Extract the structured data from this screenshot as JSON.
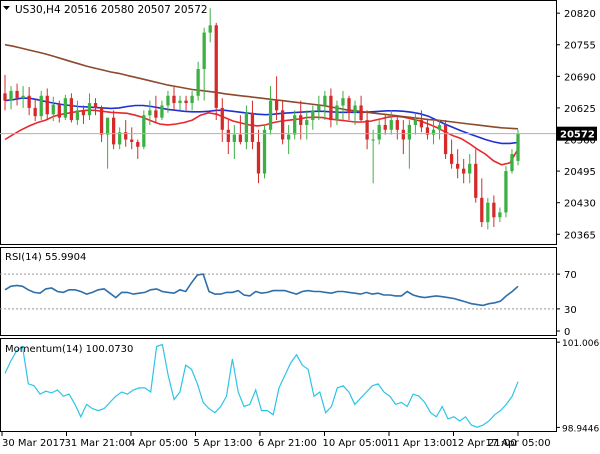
{
  "colors": {
    "bull": "#3cb043",
    "bear": "#d42a2a",
    "ma_red": "#e8282d",
    "ma_blue": "#1f2fd6",
    "ma_brown": "#8b4a2b",
    "rsi_line": "#2e6fa8",
    "momentum_line": "#2ec4e6",
    "current_price_tag_bg": "#000000",
    "current_price_tag_fg": "#ffffff",
    "frame": "#000000",
    "level_line": "#9a9a9a"
  },
  "chart_data": [
    {
      "type": "candlestick",
      "title": "US30,H4  20516 20580 20507 20572",
      "symbol": "US30,H4",
      "ohlc_header": "20516 20580 20507 20572",
      "ylim": [
        20345,
        20845
      ],
      "y_ticks": [
        "20820",
        "20755",
        "20690",
        "20625",
        "20560",
        "20495",
        "20430",
        "20365"
      ],
      "current_price": 20572,
      "current_price_label": "20572",
      "x_labels": [
        "30 Mar 2017",
        "31 Mar 21:00",
        "4 Apr 05:00",
        "5 Apr 13:00",
        "6 Apr 21:00",
        "10 Apr 05:00",
        "11 Apr 13:00",
        "12 Apr 21:00",
        "17 Apr 05:00"
      ],
      "candles": [
        [
          20655,
          20693,
          20620,
          20640
        ],
        [
          20640,
          20670,
          20622,
          20660
        ],
        [
          20660,
          20675,
          20630,
          20645
        ],
        [
          20645,
          20670,
          20625,
          20650
        ],
        [
          20650,
          20668,
          20610,
          20625
        ],
        [
          20625,
          20642,
          20598,
          20608
        ],
        [
          20608,
          20660,
          20600,
          20650
        ],
        [
          20650,
          20665,
          20600,
          20612
        ],
        [
          20612,
          20648,
          20598,
          20632
        ],
        [
          20632,
          20640,
          20595,
          20605
        ],
        [
          20605,
          20652,
          20600,
          20645
        ],
        [
          20645,
          20655,
          20595,
          20600
        ],
        [
          20600,
          20640,
          20590,
          20620
        ],
        [
          20620,
          20630,
          20592,
          20610
        ],
        [
          20610,
          20655,
          20600,
          20635
        ],
        [
          20635,
          20645,
          20610,
          20625
        ],
        [
          20625,
          20630,
          20555,
          20570
        ],
        [
          20570,
          20600,
          20500,
          20605
        ],
        [
          20605,
          20620,
          20540,
          20550
        ],
        [
          20550,
          20585,
          20540,
          20575
        ],
        [
          20575,
          20600,
          20545,
          20560
        ],
        [
          20560,
          20585,
          20540,
          20555
        ],
        [
          20555,
          20560,
          20520,
          20545
        ],
        [
          20545,
          20620,
          20540,
          20610
        ],
        [
          20610,
          20640,
          20590,
          20620
        ],
        [
          20620,
          20650,
          20595,
          20605
        ],
        [
          20605,
          20640,
          20600,
          20630
        ],
        [
          20630,
          20660,
          20615,
          20650
        ],
        [
          20650,
          20668,
          20620,
          20635
        ],
        [
          20635,
          20650,
          20620,
          20640
        ],
        [
          20640,
          20650,
          20620,
          20635
        ],
        [
          20635,
          20660,
          20620,
          20650
        ],
        [
          20650,
          20720,
          20640,
          20705
        ],
        [
          20705,
          20790,
          20640,
          20780
        ],
        [
          20780,
          20830,
          20760,
          20795
        ],
        [
          20795,
          20800,
          20600,
          20625
        ],
        [
          20625,
          20645,
          20555,
          20580
        ],
        [
          20580,
          20600,
          20530,
          20555
        ],
        [
          20555,
          20590,
          20520,
          20570
        ],
        [
          20570,
          20610,
          20550,
          20555
        ],
        [
          20555,
          20630,
          20540,
          20615
        ],
        [
          20615,
          20640,
          20540,
          20555
        ],
        [
          20555,
          20580,
          20470,
          20490
        ],
        [
          20490,
          20590,
          20480,
          20580
        ],
        [
          20580,
          20670,
          20570,
          20640
        ],
        [
          20640,
          20690,
          20600,
          20620
        ],
        [
          20620,
          20640,
          20550,
          20560
        ],
        [
          20560,
          20590,
          20530,
          20570
        ],
        [
          20570,
          20620,
          20560,
          20610
        ],
        [
          20610,
          20640,
          20560,
          20590
        ],
        [
          20590,
          20620,
          20560,
          20600
        ],
        [
          20600,
          20630,
          20580,
          20620
        ],
        [
          20620,
          20650,
          20600,
          20630
        ],
        [
          20630,
          20660,
          20600,
          20650
        ],
        [
          20650,
          20665,
          20585,
          20600
        ],
        [
          20600,
          20640,
          20590,
          20630
        ],
        [
          20630,
          20660,
          20600,
          20645
        ],
        [
          20645,
          20650,
          20600,
          20615
        ],
        [
          20615,
          20640,
          20590,
          20630
        ],
        [
          20630,
          20650,
          20595,
          20600
        ],
        [
          20600,
          20620,
          20540,
          20560
        ],
        [
          20560,
          20580,
          20470,
          20560
        ],
        [
          20560,
          20600,
          20550,
          20590
        ],
        [
          20590,
          20610,
          20570,
          20580
        ],
        [
          20580,
          20620,
          20570,
          20600
        ],
        [
          20600,
          20610,
          20560,
          20580
        ],
        [
          20580,
          20600,
          20530,
          20560
        ],
        [
          20560,
          20600,
          20500,
          20590
        ],
        [
          20590,
          20615,
          20570,
          20600
        ],
        [
          20600,
          20620,
          20575,
          20585
        ],
        [
          20585,
          20600,
          20560,
          20570
        ],
        [
          20570,
          20600,
          20550,
          20580
        ],
        [
          20580,
          20600,
          20560,
          20590
        ],
        [
          20590,
          20600,
          20520,
          20530
        ],
        [
          20530,
          20560,
          20500,
          20510
        ],
        [
          20510,
          20540,
          20480,
          20500
        ],
        [
          20500,
          20520,
          20470,
          20490
        ],
        [
          20490,
          20530,
          20470,
          20510
        ],
        [
          20510,
          20540,
          20430,
          20440
        ],
        [
          20440,
          20480,
          20380,
          20390
        ],
        [
          20390,
          20440,
          20375,
          20430
        ],
        [
          20430,
          20445,
          20380,
          20400
        ],
        [
          20400,
          20420,
          20390,
          20410
        ],
        [
          20410,
          20505,
          20400,
          20495
        ],
        [
          20495,
          20540,
          20490,
          20530
        ],
        [
          20516,
          20580,
          20507,
          20572
        ]
      ],
      "series": [
        {
          "name": "",
          "color_key": "ma_red",
          "values": [
            20560,
            20570,
            20580,
            20588,
            20595,
            20600,
            20608,
            20612,
            20615,
            20618,
            20620,
            20620,
            20618,
            20616,
            20615,
            20614,
            20610,
            20605,
            20598,
            20592,
            20590,
            20592,
            20595,
            20600,
            20610,
            20615,
            20612,
            20605,
            20598,
            20594,
            20590,
            20588,
            20590,
            20595,
            20598,
            20600,
            20602,
            20605,
            20606,
            20605,
            20602,
            20600,
            20598,
            20596,
            20596,
            20598,
            20602,
            20606,
            20608,
            20606,
            20602,
            20598,
            20592,
            20585,
            20576,
            20568,
            20562,
            20552,
            20540,
            20530,
            20516,
            20508,
            20512,
            20540
          ]
        },
        {
          "name": "",
          "color_key": "ma_blue",
          "values": [
            20640,
            20642,
            20645,
            20645,
            20642,
            20638,
            20635,
            20632,
            20630,
            20628,
            20627,
            20626,
            20625,
            20624,
            20625,
            20628,
            20630,
            20630,
            20628,
            20625,
            20622,
            20620,
            20618,
            20617,
            20617,
            20618,
            20620,
            20620,
            20618,
            20616,
            20614,
            20612,
            20611,
            20612,
            20614,
            20615,
            20616,
            20617,
            20618,
            20618,
            20617,
            20616,
            20616,
            20616,
            20616,
            20617,
            20618,
            20619,
            20619,
            20618,
            20616,
            20613,
            20608,
            20600,
            20592,
            20585,
            20578,
            20572,
            20566,
            20560,
            20555,
            20552,
            20552,
            20554
          ]
        },
        {
          "name": "",
          "color_key": "ma_brown",
          "values": [
            20755,
            20752,
            20748,
            20744,
            20740,
            20736,
            20731,
            20726,
            20721,
            20716,
            20711,
            20707,
            20703,
            20699,
            20696,
            20692,
            20688,
            20684,
            20680,
            20676,
            20672,
            20669,
            20666,
            20663,
            20661,
            20659,
            20657,
            20654,
            20652,
            20650,
            20648,
            20646,
            20644,
            20642,
            20640,
            20638,
            20636,
            20634,
            20632,
            20630,
            20627,
            20624,
            20621,
            20619,
            20617,
            20615,
            20613,
            20611,
            20609,
            20607,
            20605,
            20603,
            20601,
            20600,
            20598,
            20596,
            20594,
            20592,
            20590,
            20588,
            20586,
            20584,
            20583,
            20582
          ]
        }
      ]
    },
    {
      "type": "line",
      "title": "RSI(14) 55.9904",
      "ylim": [
        0,
        100
      ],
      "y_ticks": [
        "70",
        "30",
        "0"
      ],
      "levels": [
        70,
        30
      ],
      "series": [
        {
          "name": "",
          "color_key": "rsi_line",
          "values": [
            52,
            56,
            57,
            56,
            52,
            49,
            48,
            53,
            54,
            50,
            49,
            52,
            52,
            50,
            47,
            49,
            52,
            53,
            48,
            43,
            49,
            49,
            47,
            48,
            49,
            52,
            53,
            50,
            49,
            48,
            52,
            50,
            60,
            69,
            70,
            50,
            47,
            47,
            49,
            49,
            51,
            46,
            45,
            50,
            48,
            49,
            51,
            51,
            51,
            49,
            47,
            50,
            51,
            50,
            50,
            49,
            48,
            50,
            50,
            49,
            48,
            47,
            49,
            47,
            48,
            46,
            46,
            45,
            45,
            50,
            46,
            44,
            43,
            44,
            45,
            44,
            43,
            42,
            40,
            38,
            36,
            35,
            34,
            36,
            37,
            39,
            45,
            50,
            56
          ]
        }
      ]
    },
    {
      "type": "line",
      "title": "Momentum(14) 100.0730",
      "ylim": [
        98.93,
        101.01
      ],
      "y_ticks": [
        "101.0066",
        "98.9446"
      ],
      "series": [
        {
          "name": "",
          "color_key": "momentum_line",
          "values": [
            100.25,
            100.55,
            100.8,
            100.9,
            100.0,
            99.95,
            99.75,
            99.82,
            99.78,
            99.85,
            99.7,
            99.75,
            99.5,
            99.2,
            99.5,
            99.4,
            99.35,
            99.4,
            99.55,
            99.7,
            99.8,
            99.75,
            99.85,
            99.9,
            99.9,
            99.8,
            100.9,
            100.95,
            100.2,
            99.62,
            99.8,
            100.45,
            100.35,
            100.0,
            99.55,
            99.4,
            99.3,
            99.45,
            99.7,
            100.6,
            99.8,
            99.45,
            99.5,
            99.85,
            99.35,
            99.35,
            99.25,
            99.9,
            100.2,
            100.5,
            100.7,
            100.45,
            100.35,
            99.7,
            99.8,
            99.3,
            99.45,
            99.9,
            99.95,
            99.8,
            99.5,
            99.65,
            99.8,
            99.95,
            100.0,
            99.8,
            99.7,
            99.5,
            99.55,
            99.45,
            99.75,
            99.7,
            99.55,
            99.3,
            99.2,
            99.45,
            99.15,
            99.2,
            99.1,
            99.2,
            99.0,
            98.95,
            99.0,
            99.1,
            99.25,
            99.35,
            99.5,
            99.7,
            100.05
          ]
        }
      ]
    }
  ]
}
